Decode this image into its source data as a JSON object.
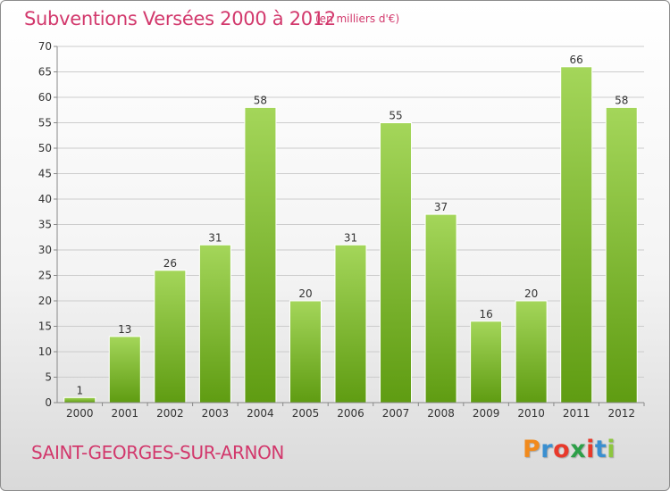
{
  "title": "Subventions Versées 2000 à 2012",
  "unit_note": "(en milliers d'€)",
  "commune": "SAINT-GEORGES-SUR-ARNON",
  "logo": {
    "text": "Proxiti",
    "letter_colors": [
      "#f18a1c",
      "#3a8fd0",
      "#e8392b",
      "#2d9f48",
      "#e8392b",
      "#3a8fd0",
      "#8dc63f"
    ]
  },
  "colors": {
    "title": "#d2386c",
    "bar_light": "#a4d65a",
    "bar_dark": "#5f9c12",
    "grid": "#cccccc"
  },
  "chart_data": {
    "type": "bar",
    "title": "Subventions Versées 2000 à 2012",
    "xlabel": "",
    "ylabel": "",
    "categories": [
      "2000",
      "2001",
      "2002",
      "2003",
      "2004",
      "2005",
      "2006",
      "2007",
      "2008",
      "2009",
      "2010",
      "2011",
      "2012"
    ],
    "values": [
      1,
      13,
      26,
      31,
      58,
      20,
      31,
      55,
      37,
      16,
      20,
      66,
      58
    ],
    "ylim": [
      0,
      70
    ],
    "yticks": [
      0,
      5,
      10,
      15,
      20,
      25,
      30,
      35,
      40,
      45,
      50,
      55,
      60,
      65,
      70
    ],
    "grid": true,
    "data_labels": true
  }
}
